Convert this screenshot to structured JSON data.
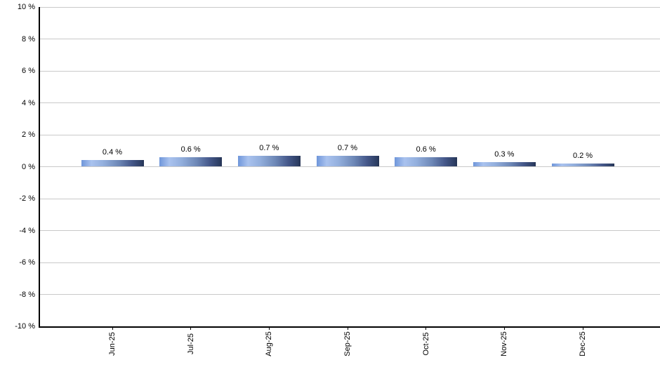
{
  "chart_data": {
    "type": "bar",
    "title": "",
    "xlabel": "",
    "ylabel": "",
    "categories": [
      "Jun-25",
      "Jul-25",
      "Aug-25",
      "Sep-25",
      "Oct-25",
      "Nov-25",
      "Dec-25"
    ],
    "values": [
      0.4,
      0.6,
      0.7,
      0.7,
      0.6,
      0.3,
      0.2
    ],
    "value_labels": [
      "0.4 %",
      "0.6 %",
      "0.7 %",
      "0.7 %",
      "0.6 %",
      "0.3 %",
      "0.2 %"
    ],
    "ylim": [
      -10,
      10
    ],
    "ytick_step": 2,
    "ytick_labels": [
      "10 %",
      "8 %",
      "6 %",
      "4 %",
      "2 %",
      "0 %",
      "-2 %",
      "-4 %",
      "-6 %",
      "-8 %",
      "-10 %"
    ],
    "grid": true,
    "legend": null,
    "colors": {
      "bar_gradient": [
        "#6f96da",
        "#a9c2ee",
        "#93afdd",
        "#6d87b6",
        "#46598b",
        "#2d3e64",
        "#253353"
      ],
      "gridline": "#c9c9c9",
      "axis": "#000000",
      "text": "#000000",
      "background": "#ffffff"
    }
  }
}
